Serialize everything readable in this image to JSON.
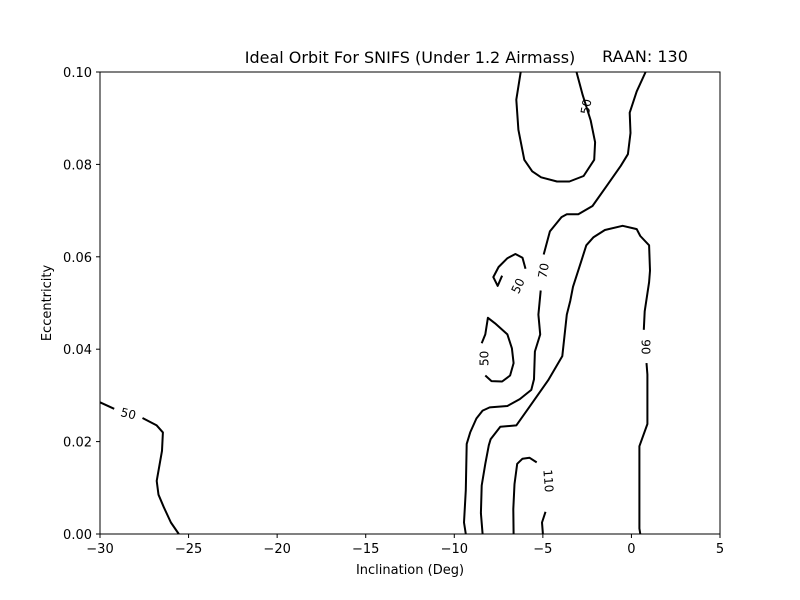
{
  "chart_data": {
    "type": "contour",
    "title": "Ideal Orbit For SNIFS (Under 1.2 Airmass)",
    "subtitle": "RAAN: 130",
    "xlabel": "Inclination (Deg)",
    "ylabel": "Eccentricity",
    "xlim": [
      -30,
      5
    ],
    "ylim": [
      0.0,
      0.1
    ],
    "xticks": [
      -30,
      -25,
      -20,
      -15,
      -10,
      -5,
      0,
      5
    ],
    "xtick_labels": [
      "−30",
      "−25",
      "−20",
      "−15",
      "−10",
      "−5",
      "0",
      "5"
    ],
    "yticks": [
      0.0,
      0.02,
      0.04,
      0.06,
      0.08,
      0.1
    ],
    "ytick_labels": [
      "0.00",
      "0.02",
      "0.04",
      "0.06",
      "0.08",
      "0.10"
    ],
    "grid": false,
    "line_color": "#000000",
    "contours": [
      {
        "level": "50",
        "points": [
          [
            -30.0,
            0.0285
          ],
          [
            -29.2,
            0.0271
          ],
          [
            -28.5,
            0.0262
          ],
          [
            -27.6,
            0.0251
          ],
          [
            -26.8,
            0.0235
          ],
          [
            -26.45,
            0.022
          ],
          [
            -26.5,
            0.018
          ],
          [
            -26.8,
            0.0115
          ],
          [
            -26.7,
            0.0085
          ],
          [
            -26.4,
            0.0058
          ],
          [
            -26.0,
            0.0025
          ],
          [
            -25.55,
            0.0
          ]
        ],
        "label_at": [
          -28.4,
          0.026
        ],
        "label_angle": 14
      },
      {
        "level": "50",
        "points": [
          [
            -6.25,
            0.1
          ],
          [
            -6.5,
            0.094
          ],
          [
            -6.38,
            0.0875
          ],
          [
            -6.05,
            0.081
          ],
          [
            -5.6,
            0.0785
          ],
          [
            -5.1,
            0.0772
          ],
          [
            -4.2,
            0.0763
          ],
          [
            -3.5,
            0.0763
          ],
          [
            -2.7,
            0.0775
          ],
          [
            -2.1,
            0.081
          ],
          [
            -2.05,
            0.0848
          ],
          [
            -2.3,
            0.0895
          ],
          [
            -2.75,
            0.095
          ],
          [
            -3.1,
            0.1
          ]
        ],
        "label_at": [
          -2.55,
          0.0925
        ],
        "label_angle": -80
      },
      {
        "level": "50",
        "points": [
          [
            -7.3,
            0.0559
          ],
          [
            -7.0,
            0.0537
          ],
          [
            -6.7,
            0.0519
          ],
          [
            -6.4,
            0.0512
          ],
          [
            -6.05,
            0.0522
          ],
          [
            -5.95,
            0.0547
          ],
          [
            -5.98,
            0.0574
          ],
          [
            -6.15,
            0.0598
          ],
          [
            -6.55,
            0.0606
          ],
          [
            -7.0,
            0.0597
          ],
          [
            -7.5,
            0.0578
          ],
          [
            -7.8,
            0.0556
          ],
          [
            -7.55,
            0.0537
          ],
          [
            -7.3,
            0.0559
          ]
        ],
        "label_at": [
          -6.4,
          0.0537
        ],
        "label_angle": -65
      },
      {
        "level": "50",
        "points": [
          [
            -8.45,
            0.0413
          ],
          [
            -8.25,
            0.0432
          ],
          [
            -8.1,
            0.0468
          ],
          [
            -7.7,
            0.0456
          ],
          [
            -7.0,
            0.0432
          ],
          [
            -6.75,
            0.0402
          ],
          [
            -6.65,
            0.037
          ],
          [
            -6.85,
            0.0343
          ],
          [
            -7.3,
            0.033
          ],
          [
            -7.9,
            0.0331
          ],
          [
            -8.25,
            0.0343
          ],
          [
            -8.35,
            0.0357
          ]
        ],
        "label_at": [
          -8.3,
          0.038
        ],
        "label_angle": -90
      },
      {
        "level": "70",
        "points": [
          [
            0.8,
            0.1
          ],
          [
            0.3,
            0.0958
          ],
          [
            -0.1,
            0.0912
          ],
          [
            -0.05,
            0.0868
          ],
          [
            -0.2,
            0.0822
          ],
          [
            -0.6,
            0.0797
          ],
          [
            -1.4,
            0.0753
          ],
          [
            -2.2,
            0.071
          ],
          [
            -3.0,
            0.0692
          ],
          [
            -3.65,
            0.0692
          ],
          [
            -3.95,
            0.0686
          ],
          [
            -4.6,
            0.0655
          ],
          [
            -4.95,
            0.0605
          ],
          [
            -5.0,
            0.0595
          ],
          [
            -5.12,
            0.0527
          ],
          [
            -5.25,
            0.0475
          ],
          [
            -5.15,
            0.0432
          ],
          [
            -5.45,
            0.0395
          ],
          [
            -5.5,
            0.0335
          ],
          [
            -5.65,
            0.0312
          ],
          [
            -6.3,
            0.0292
          ],
          [
            -7.0,
            0.0277
          ],
          [
            -8.0,
            0.0274
          ],
          [
            -8.4,
            0.0267
          ],
          [
            -8.75,
            0.025
          ],
          [
            -9.1,
            0.022
          ],
          [
            -9.3,
            0.0195
          ],
          [
            -9.35,
            0.0095
          ],
          [
            -9.45,
            0.0025
          ],
          [
            -9.35,
            0.0
          ]
        ],
        "label_at": [
          -4.95,
          0.057
        ],
        "label_angle": -80
      },
      {
        "level": "90",
        "points": [
          [
            -8.4,
            0.0
          ],
          [
            -8.5,
            0.0045
          ],
          [
            -8.45,
            0.0105
          ],
          [
            -8.25,
            0.0152
          ],
          [
            -8.05,
            0.0192
          ],
          [
            -7.95,
            0.0205
          ],
          [
            -7.4,
            0.0232
          ],
          [
            -6.5,
            0.0235
          ],
          [
            -5.8,
            0.0273
          ],
          [
            -4.7,
            0.0333
          ],
          [
            -3.9,
            0.0385
          ],
          [
            -3.65,
            0.0475
          ],
          [
            -3.45,
            0.0505
          ],
          [
            -3.3,
            0.0535
          ],
          [
            -2.85,
            0.0588
          ],
          [
            -2.55,
            0.0625
          ],
          [
            -2.15,
            0.0642
          ],
          [
            -1.5,
            0.0658
          ],
          [
            -0.5,
            0.0667
          ],
          [
            0.3,
            0.066
          ],
          [
            0.5,
            0.0645
          ],
          [
            1.0,
            0.0625
          ],
          [
            1.05,
            0.057
          ],
          [
            1.0,
            0.0545
          ],
          [
            0.75,
            0.0482
          ],
          [
            0.7,
            0.0442
          ],
          [
            0.8,
            0.0405
          ],
          [
            0.85,
            0.037
          ],
          [
            0.9,
            0.0345
          ],
          [
            0.9,
            0.0238
          ],
          [
            0.45,
            0.019
          ],
          [
            0.45,
            0.01
          ],
          [
            0.45,
            0.0012
          ],
          [
            0.5,
            0.0
          ]
        ],
        "label_at": [
          0.8,
          0.0405
        ],
        "label_angle": 90
      },
      {
        "level": "110",
        "points": [
          [
            -6.65,
            0.0
          ],
          [
            -6.67,
            0.0054
          ],
          [
            -6.6,
            0.0108
          ],
          [
            -6.45,
            0.0152
          ],
          [
            -6.15,
            0.0163
          ],
          [
            -5.75,
            0.0165
          ],
          [
            -5.35,
            0.0155
          ],
          [
            -4.95,
            0.0125
          ],
          [
            -4.75,
            0.0092
          ],
          [
            -4.85,
            0.0048
          ],
          [
            -5.05,
            0.0025
          ],
          [
            -5.0,
            0.0
          ]
        ],
        "label_at": [
          -4.7,
          0.0115
        ],
        "label_angle": 86
      }
    ]
  }
}
